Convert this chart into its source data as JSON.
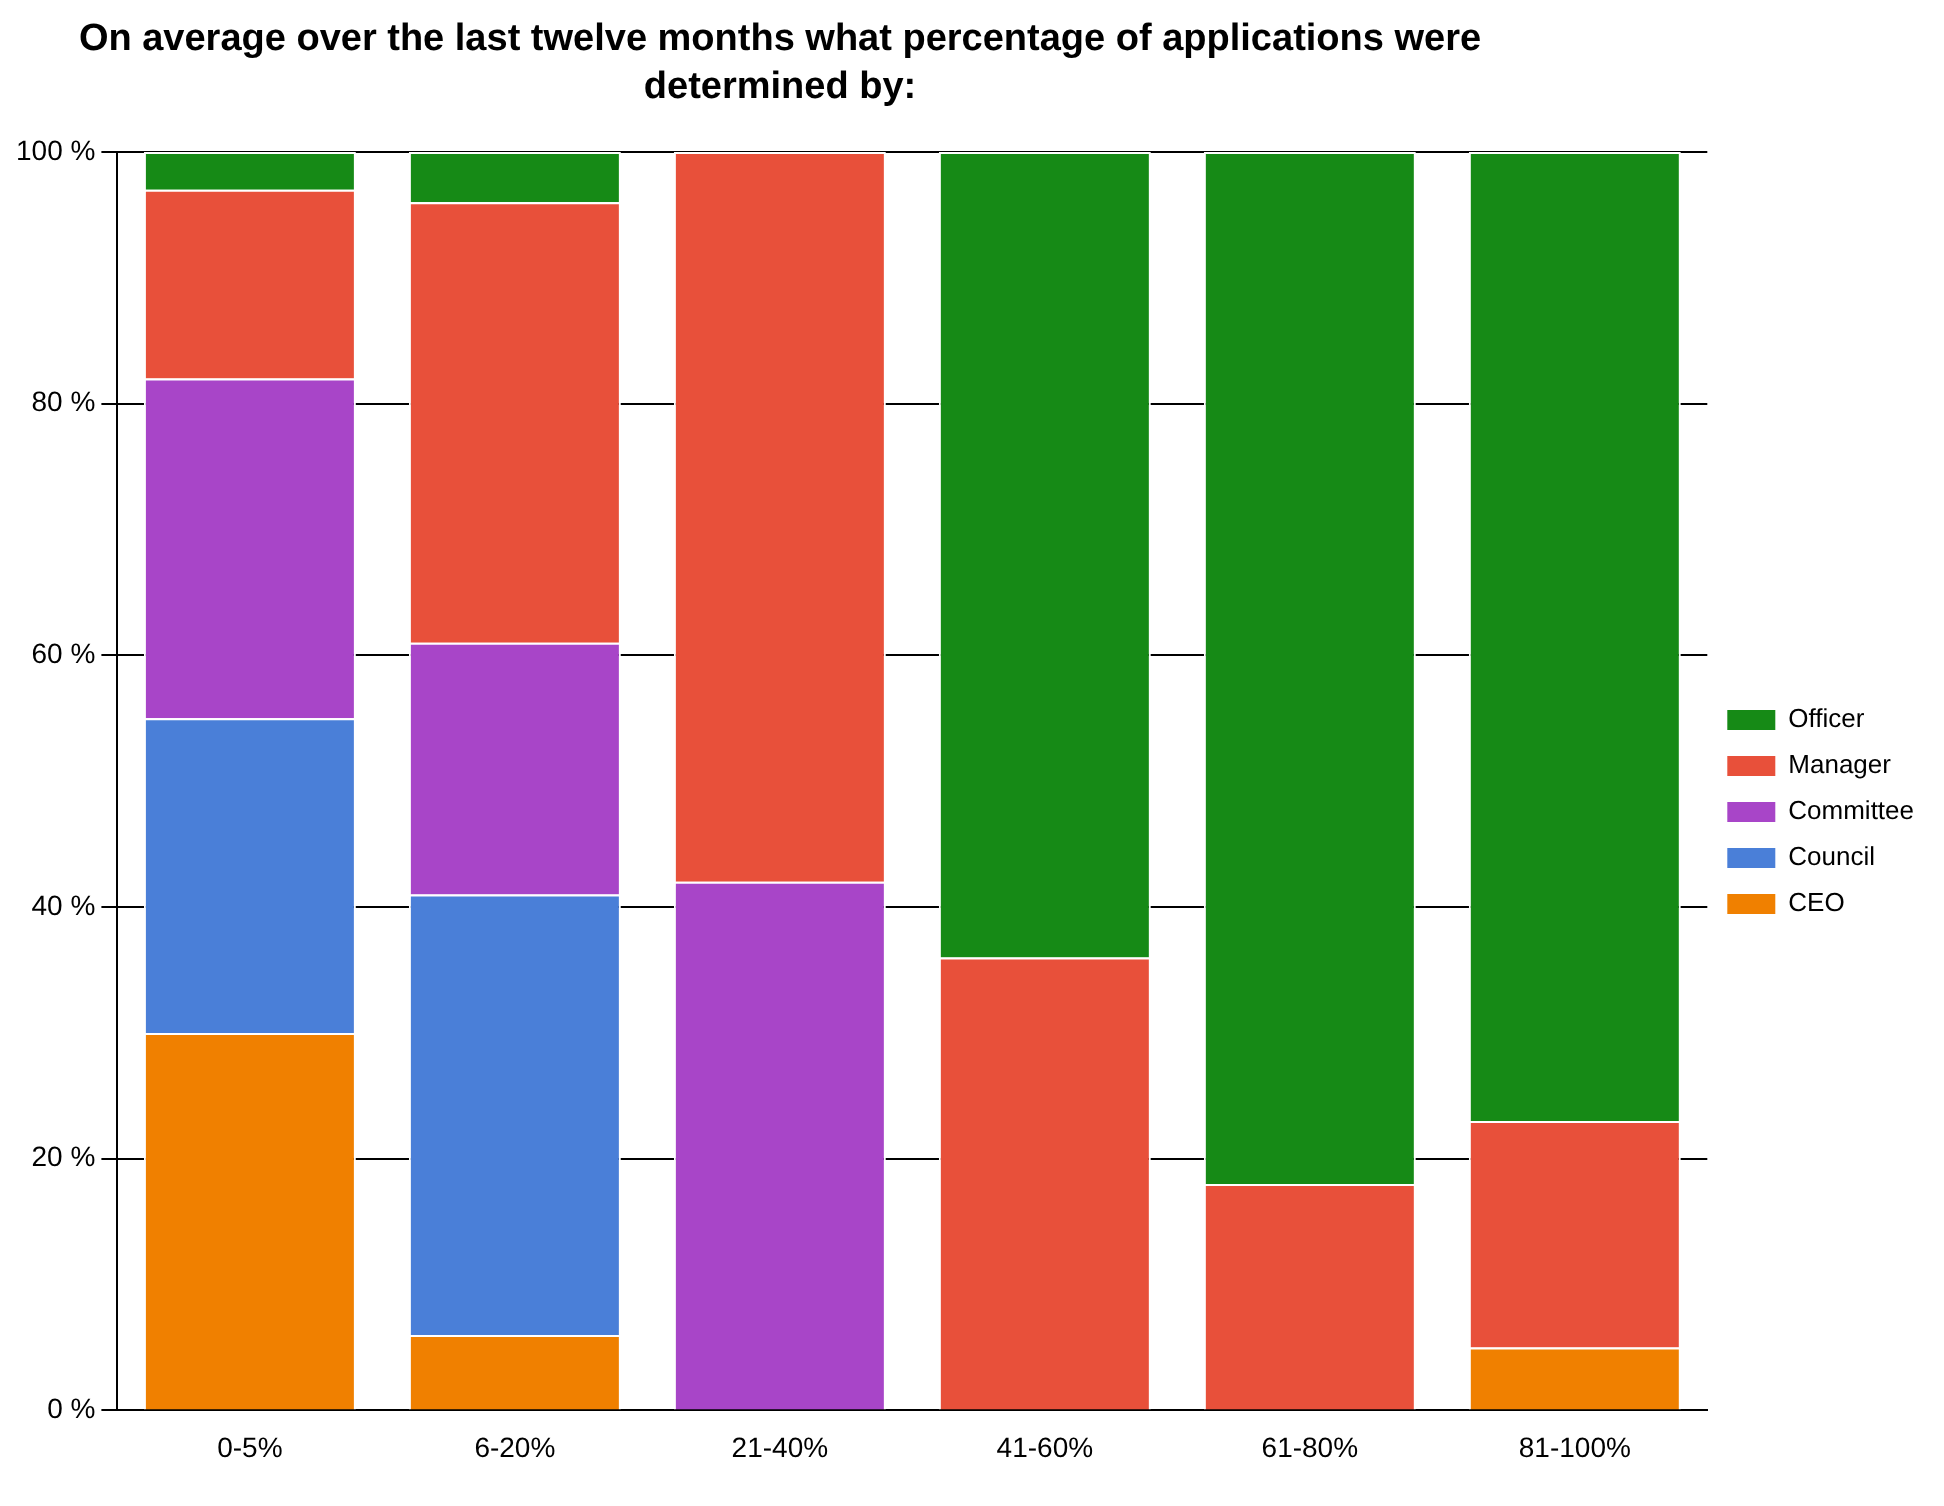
{
  "chart_data": {
    "type": "bar",
    "title": "On average over the last twelve months what percentage of applications were determined by:",
    "categories": [
      "0-5%",
      "6-20%",
      "21-40%",
      "41-60%",
      "61-80%",
      "81-100%"
    ],
    "stacked": true,
    "series": [
      {
        "name": "CEO",
        "color": "#f08000",
        "values": [
          30,
          6,
          0,
          0,
          0,
          5
        ]
      },
      {
        "name": "Council",
        "color": "#4a7fd8",
        "values": [
          25,
          35,
          0,
          0,
          0,
          0
        ]
      },
      {
        "name": "Committee",
        "color": "#a845c8",
        "values": [
          27,
          20,
          42,
          0,
          0,
          0
        ]
      },
      {
        "name": "Manager",
        "color": "#e8503a",
        "values": [
          15,
          35,
          58,
          36,
          18,
          18
        ]
      },
      {
        "name": "Officer",
        "color": "#168a16",
        "values": [
          3,
          4,
          0,
          64,
          82,
          77
        ]
      }
    ],
    "ylim": [
      0,
      100
    ],
    "yticks": [
      {
        "value": 0,
        "label": "0 %"
      },
      {
        "value": 20,
        "label": "20 %"
      },
      {
        "value": 40,
        "label": "40 %"
      },
      {
        "value": 60,
        "label": "60 %"
      },
      {
        "value": 80,
        "label": "80 %"
      },
      {
        "value": 100,
        "label": "100 %"
      }
    ],
    "grid": "y",
    "legend": "right"
  }
}
